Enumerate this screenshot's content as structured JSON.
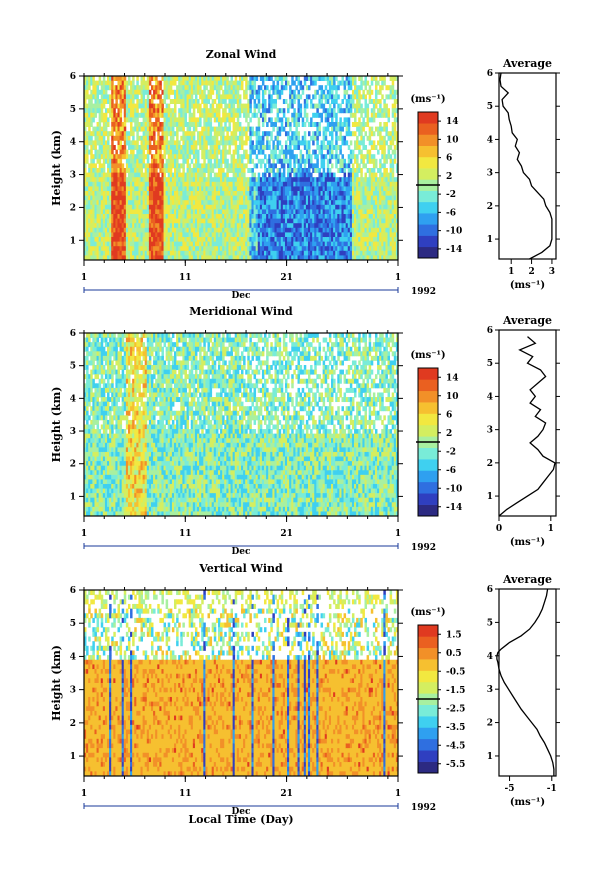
{
  "chart_data": [
    {
      "type": "heatmap",
      "title": "Zonal Wind",
      "ylabel": "Height (km)",
      "ylim": [
        0.4,
        6
      ],
      "yticks": [
        "1",
        "2",
        "3",
        "4",
        "5",
        "6"
      ],
      "xticks": [
        "1",
        "11",
        "21",
        "1"
      ],
      "month_label": "Dec",
      "year_label": "1992",
      "colorbar": {
        "unit_label": "(ms⁻¹)",
        "tick_labels": [
          "14",
          "10",
          "6",
          "2",
          "-2",
          "-6",
          "-10",
          "-14"
        ],
        "range": [
          -16,
          16
        ],
        "colors": [
          "#2c2a82",
          "#2f3fc0",
          "#2f6fe0",
          "#2fa0f0",
          "#3fd0f0",
          "#79ecd8",
          "#a8f0a0",
          "#d4ee60",
          "#f2e840",
          "#f6c030",
          "#f29028",
          "#ea6020",
          "#e03a20"
        ]
      },
      "profile": {
        "title": "Average",
        "xlabel": "(ms⁻¹)",
        "xticks": [
          "1",
          "2",
          "3"
        ],
        "xlim": [
          0.4,
          3.2
        ],
        "heights": [
          0.4,
          0.6,
          0.8,
          1.0,
          1.2,
          1.4,
          1.6,
          1.8,
          2.0,
          2.2,
          2.4,
          2.6,
          2.8,
          3.0,
          3.2,
          3.4,
          3.6,
          3.8,
          4.0,
          4.2,
          4.4,
          4.6,
          4.8,
          5.0,
          5.2,
          5.4,
          5.6,
          5.8,
          6.0
        ],
        "values": [
          1.9,
          2.5,
          2.9,
          3.0,
          3.0,
          3.0,
          3.0,
          2.9,
          2.7,
          2.6,
          2.3,
          2.0,
          1.9,
          1.6,
          1.5,
          1.3,
          1.4,
          1.2,
          1.3,
          1.05,
          1.0,
          0.9,
          0.85,
          0.6,
          0.55,
          0.85,
          0.5,
          0.45,
          0.5
        ]
      }
    },
    {
      "type": "heatmap",
      "title": "Meridional Wind",
      "ylabel": "Height (km)",
      "ylim": [
        0.4,
        6
      ],
      "yticks": [
        "1",
        "2",
        "3",
        "4",
        "5",
        "6"
      ],
      "xticks": [
        "1",
        "11",
        "21",
        "1"
      ],
      "month_label": "Dec",
      "year_label": "1992",
      "colorbar": {
        "unit_label": "(ms⁻¹)",
        "tick_labels": [
          "14",
          "10",
          "6",
          "2",
          "-2",
          "-6",
          "-10",
          "-14"
        ],
        "range": [
          -16,
          16
        ],
        "colors": [
          "#2c2a82",
          "#2f3fc0",
          "#2f6fe0",
          "#2fa0f0",
          "#3fd0f0",
          "#79ecd8",
          "#a8f0a0",
          "#d4ee60",
          "#f2e840",
          "#f6c030",
          "#f29028",
          "#ea6020",
          "#e03a20"
        ]
      },
      "profile": {
        "title": "Average",
        "xlabel": "(ms⁻¹)",
        "xticks": [
          "0",
          "1"
        ],
        "xlim": [
          0,
          1.1
        ],
        "heights": [
          0.4,
          0.6,
          0.8,
          1.0,
          1.2,
          1.4,
          1.6,
          1.8,
          2.0,
          2.2,
          2.4,
          2.6,
          2.8,
          3.0,
          3.2,
          3.4,
          3.6,
          3.8,
          4.0,
          4.2,
          4.4,
          4.6,
          4.8,
          5.0,
          5.2,
          5.4,
          5.6,
          5.8
        ],
        "values": [
          0.0,
          0.15,
          0.35,
          0.55,
          0.75,
          0.85,
          0.95,
          1.05,
          1.08,
          0.85,
          0.75,
          0.6,
          0.75,
          0.85,
          0.9,
          0.7,
          0.8,
          0.6,
          0.7,
          0.6,
          0.75,
          0.9,
          0.8,
          0.55,
          0.65,
          0.4,
          0.7,
          0.55
        ]
      }
    },
    {
      "type": "heatmap",
      "title": "Vertical Wind",
      "ylabel": "Height (km)",
      "xlabel": "Local Time (Day)",
      "ylim": [
        0.4,
        6
      ],
      "yticks": [
        "1",
        "2",
        "3",
        "4",
        "5",
        "6"
      ],
      "xticks": [
        "1",
        "11",
        "21",
        "1"
      ],
      "month_label": "Dec",
      "year_label": "1992",
      "colorbar": {
        "unit_label": "(ms⁻¹)",
        "tick_labels": [
          "1.5",
          "0.5",
          "-0.5",
          "-1.5",
          "-2.5",
          "-3.5",
          "-4.5",
          "-5.5"
        ],
        "range": [
          -6,
          2
        ],
        "colors": [
          "#2c2a82",
          "#2f3fc0",
          "#2f6fe0",
          "#2fa0f0",
          "#3fd0f0",
          "#79ecd8",
          "#a8f0a0",
          "#d4ee60",
          "#f2e840",
          "#f6c030",
          "#f29028",
          "#ea6020",
          "#e03a20"
        ]
      },
      "profile": {
        "title": "Average",
        "xlabel": "(ms⁻¹)",
        "xticks": [
          "-5",
          "-1"
        ],
        "xlim": [
          -6.0,
          -0.6
        ],
        "heights": [
          0.4,
          0.6,
          0.8,
          1.0,
          1.2,
          1.4,
          1.6,
          1.8,
          2.0,
          2.2,
          2.4,
          2.6,
          2.8,
          3.0,
          3.2,
          3.4,
          3.6,
          3.8,
          3.9,
          4.0,
          4.1,
          4.2,
          4.4,
          4.6,
          4.8,
          5.0,
          5.2,
          5.4,
          5.6,
          5.8,
          6.0
        ],
        "values": [
          -0.8,
          -0.8,
          -0.9,
          -1.1,
          -1.4,
          -1.7,
          -2.1,
          -2.4,
          -2.9,
          -3.4,
          -3.9,
          -4.3,
          -4.7,
          -5.1,
          -5.5,
          -5.8,
          -6.0,
          -6.1,
          -6.2,
          -6.2,
          -6.1,
          -5.8,
          -5.0,
          -3.9,
          -3.1,
          -2.6,
          -2.2,
          -1.9,
          -1.7,
          -1.5,
          -1.4
        ]
      }
    }
  ]
}
